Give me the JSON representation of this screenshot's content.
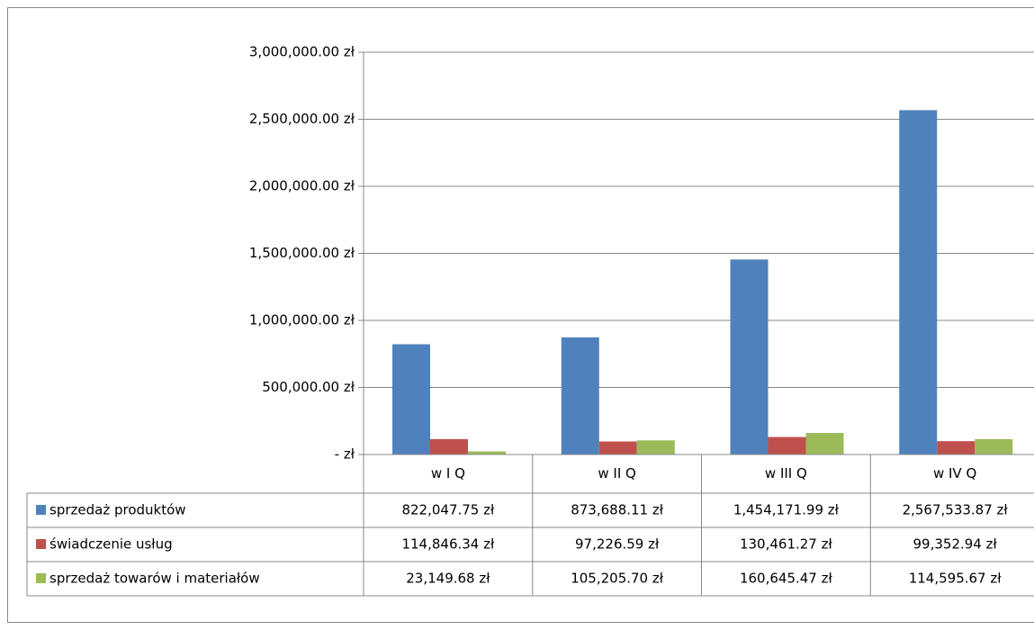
{
  "chart_data": {
    "type": "bar",
    "categories": [
      "w I Q",
      "w II Q",
      "w III Q",
      "w IV Q"
    ],
    "series": [
      {
        "name": "sprzedaż produktów",
        "color": "#4f81bd",
        "values": [
          822047.75,
          873688.11,
          1454171.99,
          2567533.87
        ],
        "value_labels": [
          "822,047.75 zł",
          "873,688.11 zł",
          "1,454,171.99 zł",
          "2,567,533.87 zł"
        ]
      },
      {
        "name": "świadczenie usług",
        "color": "#c0504d",
        "values": [
          114846.34,
          97226.59,
          130461.27,
          99352.94
        ],
        "value_labels": [
          "114,846.34 zł",
          "97,226.59 zł",
          "130,461.27 zł",
          "99,352.94 zł"
        ]
      },
      {
        "name": "sprzedaż towarów i materiałów",
        "color": "#9bbb59",
        "values": [
          23149.68,
          105205.7,
          160645.47,
          114595.67
        ],
        "value_labels": [
          "23,149.68 zł",
          "105,205.70 zł",
          "160,645.47 zł",
          "114,595.67 zł"
        ]
      }
    ],
    "ylim": [
      0,
      3000000
    ],
    "yticks": [
      {
        "value": 0,
        "label": "-   zł"
      },
      {
        "value": 500000,
        "label": "500,000.00 zł"
      },
      {
        "value": 1000000,
        "label": "1,000,000.00 zł"
      },
      {
        "value": 1500000,
        "label": "1,500,000.00 zł"
      },
      {
        "value": 2000000,
        "label": "2,000,000.00 zł"
      },
      {
        "value": 2500000,
        "label": "2,500,000.00 zł"
      },
      {
        "value": 3000000,
        "label": "3,000,000.00 zł"
      }
    ],
    "grid": true
  }
}
